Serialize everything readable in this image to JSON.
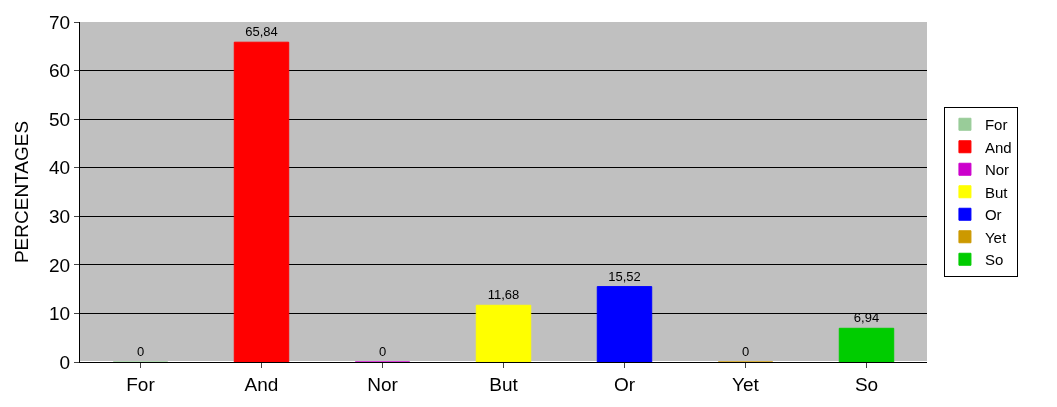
{
  "chart_data": {
    "type": "bar",
    "ylabel": "PERCENTAGES",
    "categories": [
      "For",
      "And",
      "Nor",
      "But",
      "Or",
      "Yet",
      "So"
    ],
    "series": [
      {
        "name": "For",
        "color": "#99cc99",
        "values": [
          0,
          null,
          null,
          null,
          null,
          null,
          null
        ],
        "value_labels": [
          "0",
          null,
          null,
          null,
          null,
          null,
          null
        ]
      },
      {
        "name": "And",
        "color": "#ff0000",
        "values": [
          null,
          65.84,
          null,
          null,
          null,
          null,
          null
        ],
        "value_labels": [
          null,
          "65,84",
          null,
          null,
          null,
          null,
          null
        ]
      },
      {
        "name": "Nor",
        "color": "#cc00cc",
        "values": [
          null,
          null,
          0,
          null,
          null,
          null,
          null
        ],
        "value_labels": [
          null,
          null,
          "0",
          null,
          null,
          null,
          null
        ]
      },
      {
        "name": "But",
        "color": "#ffff00",
        "values": [
          null,
          null,
          null,
          11.68,
          null,
          null,
          null
        ],
        "value_labels": [
          null,
          null,
          null,
          "11,68",
          null,
          null,
          null
        ]
      },
      {
        "name": "Or",
        "color": "#0000ff",
        "values": [
          null,
          null,
          null,
          null,
          15.52,
          null,
          null
        ],
        "value_labels": [
          null,
          null,
          null,
          null,
          "15,52",
          null,
          null
        ]
      },
      {
        "name": "Yet",
        "color": "#cc9900",
        "values": [
          null,
          null,
          null,
          null,
          null,
          0,
          null
        ],
        "value_labels": [
          null,
          null,
          null,
          null,
          null,
          "0",
          null
        ]
      },
      {
        "name": "So",
        "color": "#00cc00",
        "values": [
          null,
          null,
          null,
          null,
          null,
          null,
          6.94
        ],
        "value_labels": [
          null,
          null,
          null,
          null,
          null,
          null,
          "6,94"
        ]
      }
    ],
    "ylim": [
      0,
      70
    ],
    "yticks": [
      0,
      10,
      20,
      30,
      40,
      50,
      60,
      70
    ],
    "grid": "y",
    "legend": "right"
  }
}
